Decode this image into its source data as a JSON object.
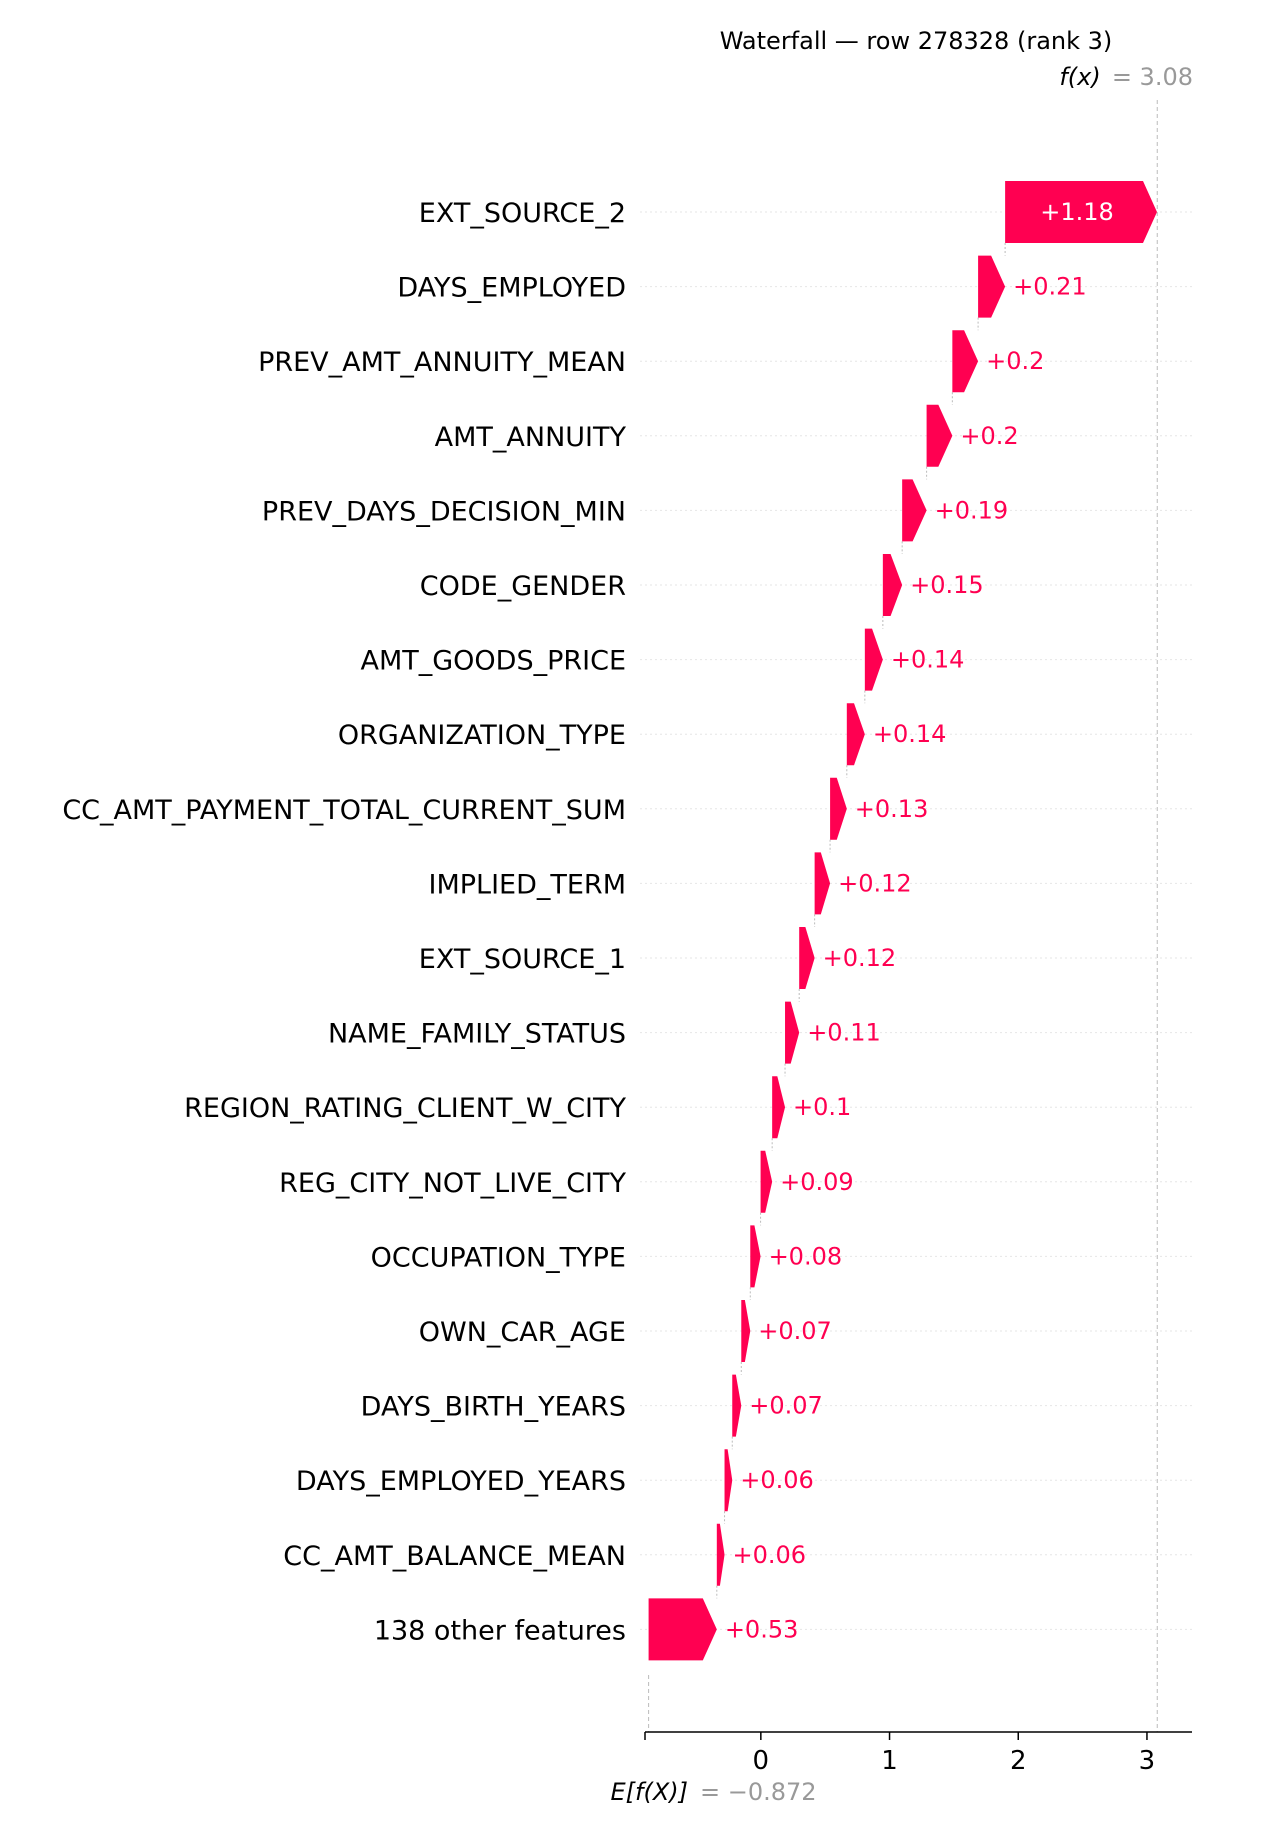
{
  "chart_data": {
    "type": "waterfall",
    "title": "Waterfall — row 278328 (rank 3)",
    "fx_label": "f(x)",
    "fx_value_text": "= 3.08",
    "fx_value": 3.08,
    "base_label": "E[f(X)]",
    "base_value_text": "= −0.872",
    "base_value": -0.872,
    "xlim": [
      -0.9,
      3.35
    ],
    "xticks": [
      0,
      1,
      2,
      3
    ],
    "xtick_labels": [
      "0",
      "1",
      "2",
      "3"
    ],
    "positive_color": "#ff0051",
    "negative_color": "#008bfb",
    "features": [
      {
        "name": "EXT_SOURCE_2",
        "value": 1.18,
        "label": "+1.18"
      },
      {
        "name": "DAYS_EMPLOYED",
        "value": 0.21,
        "label": "+0.21"
      },
      {
        "name": "PREV_AMT_ANNUITY_MEAN",
        "value": 0.2,
        "label": "+0.2"
      },
      {
        "name": "AMT_ANNUITY",
        "value": 0.2,
        "label": "+0.2"
      },
      {
        "name": "PREV_DAYS_DECISION_MIN",
        "value": 0.19,
        "label": "+0.19"
      },
      {
        "name": "CODE_GENDER",
        "value": 0.15,
        "label": "+0.15"
      },
      {
        "name": "AMT_GOODS_PRICE",
        "value": 0.14,
        "label": "+0.14"
      },
      {
        "name": "ORGANIZATION_TYPE",
        "value": 0.14,
        "label": "+0.14"
      },
      {
        "name": "CC_AMT_PAYMENT_TOTAL_CURRENT_SUM",
        "value": 0.13,
        "label": "+0.13"
      },
      {
        "name": "IMPLIED_TERM",
        "value": 0.12,
        "label": "+0.12"
      },
      {
        "name": "EXT_SOURCE_1",
        "value": 0.12,
        "label": "+0.12"
      },
      {
        "name": "NAME_FAMILY_STATUS",
        "value": 0.11,
        "label": "+0.11"
      },
      {
        "name": "REGION_RATING_CLIENT_W_CITY",
        "value": 0.1,
        "label": "+0.1"
      },
      {
        "name": "REG_CITY_NOT_LIVE_CITY",
        "value": 0.09,
        "label": "+0.09"
      },
      {
        "name": "OCCUPATION_TYPE",
        "value": 0.08,
        "label": "+0.08"
      },
      {
        "name": "OWN_CAR_AGE",
        "value": 0.07,
        "label": "+0.07"
      },
      {
        "name": "DAYS_BIRTH_YEARS",
        "value": 0.07,
        "label": "+0.07"
      },
      {
        "name": "DAYS_EMPLOYED_YEARS",
        "value": 0.06,
        "label": "+0.06"
      },
      {
        "name": "CC_AMT_BALANCE_MEAN",
        "value": 0.06,
        "label": "+0.06"
      },
      {
        "name": "138 other features",
        "value": 0.53,
        "label": "+0.53"
      }
    ]
  }
}
